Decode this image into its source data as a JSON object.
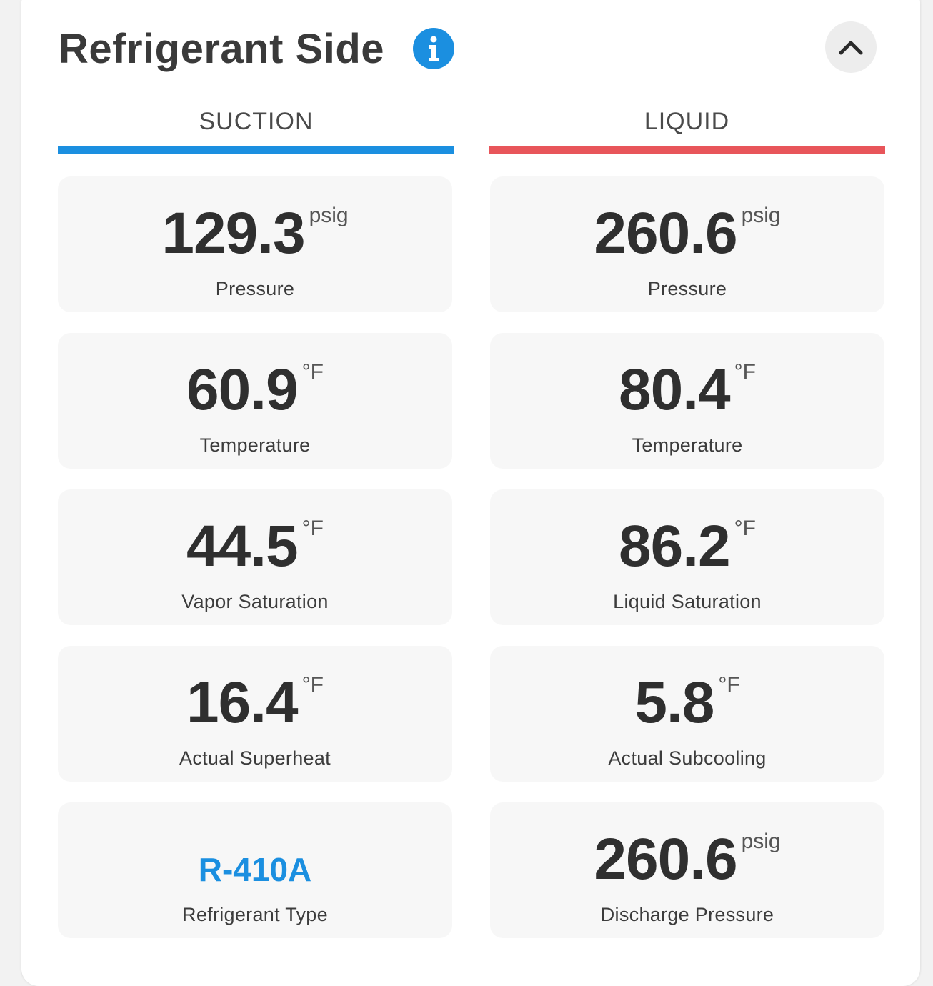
{
  "header": {
    "title": "Refrigerant Side"
  },
  "columns": {
    "suction": {
      "label": "SUCTION",
      "color": "#1b8fe0"
    },
    "liquid": {
      "label": "LIQUID",
      "color": "#e8555a"
    }
  },
  "suction": [
    {
      "value": "129.3",
      "unit": "psig",
      "label": "Pressure"
    },
    {
      "value": "60.9",
      "unit": "°F",
      "label": "Temperature"
    },
    {
      "value": "44.5",
      "unit": "°F",
      "label": "Vapor Saturation"
    },
    {
      "value": "16.4",
      "unit": "°F",
      "label": "Actual Superheat"
    },
    {
      "value": "R-410A",
      "label": "Refrigerant Type"
    }
  ],
  "liquid": [
    {
      "value": "260.6",
      "unit": "psig",
      "label": "Pressure"
    },
    {
      "value": "80.4",
      "unit": "°F",
      "label": "Temperature"
    },
    {
      "value": "86.2",
      "unit": "°F",
      "label": "Liquid Saturation"
    },
    {
      "value": "5.8",
      "unit": "°F",
      "label": "Actual Subcooling"
    },
    {
      "value": "260.6",
      "unit": "psig",
      "label": "Discharge Pressure"
    }
  ],
  "icons": {
    "info": "info-icon",
    "collapse": "chevron-up-icon"
  }
}
